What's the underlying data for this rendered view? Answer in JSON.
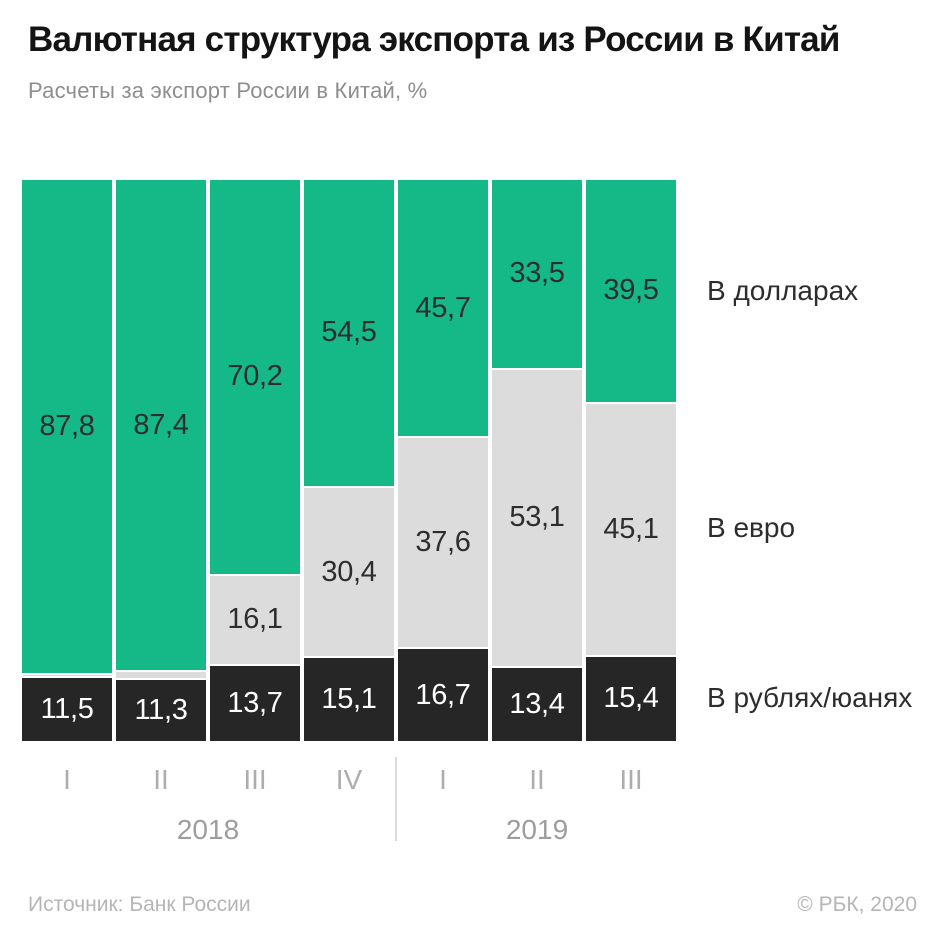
{
  "header": {
    "title": "Валютная структура экспорта из России в Китай",
    "subtitle": "Расчеты за экспорт России в Китай, %"
  },
  "footer": {
    "source": "Источник: Банк России",
    "copyright": "© РБК, 2020"
  },
  "colors": {
    "dollars": "#15b987",
    "euro": "#dcdcdc",
    "rub_yuan": "#262626",
    "label_dark": "#2d2d2d",
    "label_light": "#ffffff",
    "axis_text": "#a3a3a3",
    "background": "#ffffff"
  },
  "chart_data": {
    "type": "bar",
    "stacked": true,
    "unit": "%",
    "ylim": [
      0,
      100
    ],
    "grid": false,
    "legend_position": "right",
    "categories": [
      "I",
      "II",
      "III",
      "IV",
      "I",
      "II",
      "III"
    ],
    "year_groups": [
      {
        "label": "2018",
        "from": 0,
        "to": 3
      },
      {
        "label": "2019",
        "from": 4,
        "to": 6
      }
    ],
    "series": [
      {
        "name": "В долларах",
        "color": "#15b987",
        "values": [
          87.8,
          87.4,
          70.2,
          54.5,
          45.7,
          33.5,
          39.5
        ],
        "labels": [
          "87,8",
          "87,4",
          "70,2",
          "54,5",
          "45,7",
          "33,5",
          "39,5"
        ],
        "label_color": "#2d2d2d"
      },
      {
        "name": "В евро",
        "color": "#dcdcdc",
        "values": [
          0.7,
          1.3,
          16.1,
          30.4,
          37.6,
          53.1,
          45.1
        ],
        "labels": [
          "",
          "",
          "16,1",
          "30,4",
          "37,6",
          "53,1",
          "45,1"
        ],
        "label_color": "#2d2d2d"
      },
      {
        "name": "В рублях/юанях",
        "color": "#262626",
        "values": [
          11.5,
          11.3,
          13.7,
          15.1,
          16.7,
          13.4,
          15.4
        ],
        "labels": [
          "11,5",
          "11,3",
          "13,7",
          "15,1",
          "16,7",
          "13,4",
          "15,4"
        ],
        "label_color": "#ffffff"
      }
    ]
  }
}
